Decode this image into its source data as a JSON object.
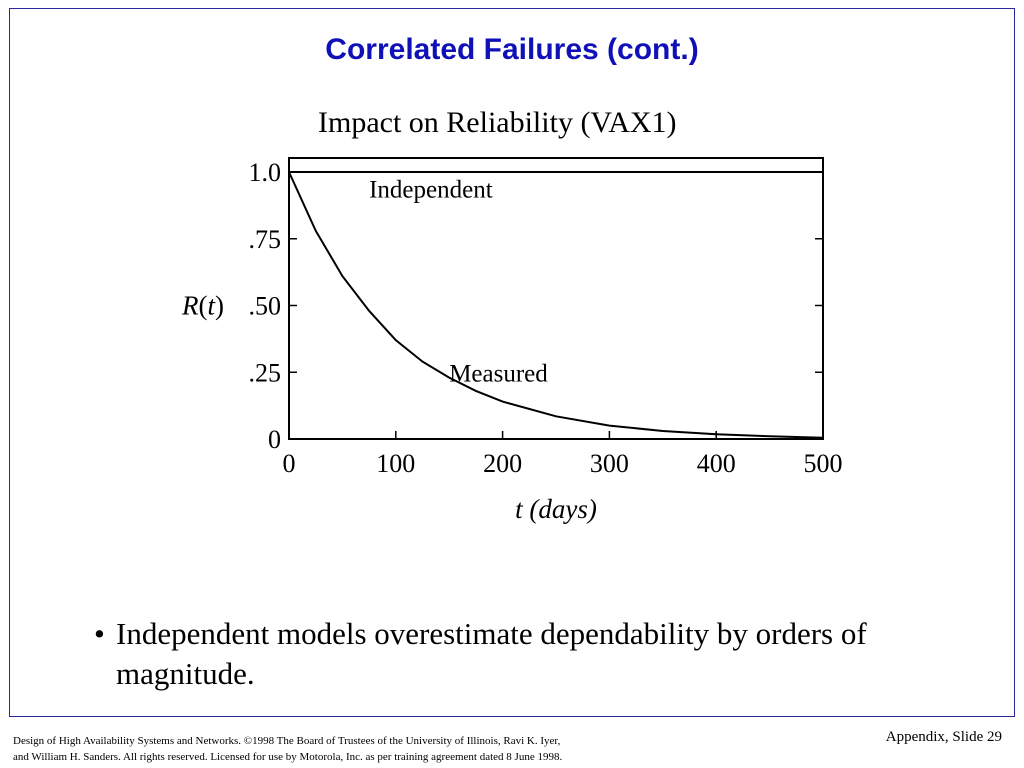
{
  "slide": {
    "title": "Correlated Failures (cont.)",
    "bullet": "Independent models overestimate dependability by orders of magnitude.",
    "bullet_marker": "•",
    "footer_left_line1": "Design of High Availability Systems and Networks.  ©1998 The Board of Trustees of the University of Illinois, Ravi K. Iyer,",
    "footer_left_line2": "and William H. Sanders.  All rights reserved.  Licensed for use by Motorola, Inc. as per training agreement dated 8 June 1998.",
    "footer_right": "Appendix, Slide 29"
  },
  "chart_data": {
    "type": "line",
    "title": "Impact on Reliability (VAX1)",
    "xlabel": "t (days)",
    "ylabel": "R(t)",
    "xlim": [
      0,
      500
    ],
    "ylim": [
      0,
      1.0
    ],
    "x_ticks": [
      0,
      100,
      200,
      300,
      400,
      500
    ],
    "x_tick_labels": [
      "0",
      "100",
      "200",
      "300",
      "400",
      "500"
    ],
    "y_ticks": [
      0,
      0.25,
      0.5,
      0.75,
      1.0
    ],
    "y_tick_labels": [
      "0",
      ".25",
      ".50",
      ".75",
      "1.0"
    ],
    "grid": false,
    "series": [
      {
        "name": "Independent",
        "x": [
          0,
          100,
          200,
          300,
          400,
          500
        ],
        "y": [
          1.0,
          1.0,
          1.0,
          1.0,
          1.0,
          1.0
        ]
      },
      {
        "name": "Measured",
        "x": [
          0,
          25,
          50,
          75,
          100,
          125,
          150,
          175,
          200,
          250,
          300,
          350,
          400,
          450,
          500
        ],
        "y": [
          1.0,
          0.78,
          0.61,
          0.48,
          0.37,
          0.29,
          0.23,
          0.18,
          0.14,
          0.085,
          0.05,
          0.03,
          0.018,
          0.01,
          0.005
        ]
      }
    ]
  }
}
